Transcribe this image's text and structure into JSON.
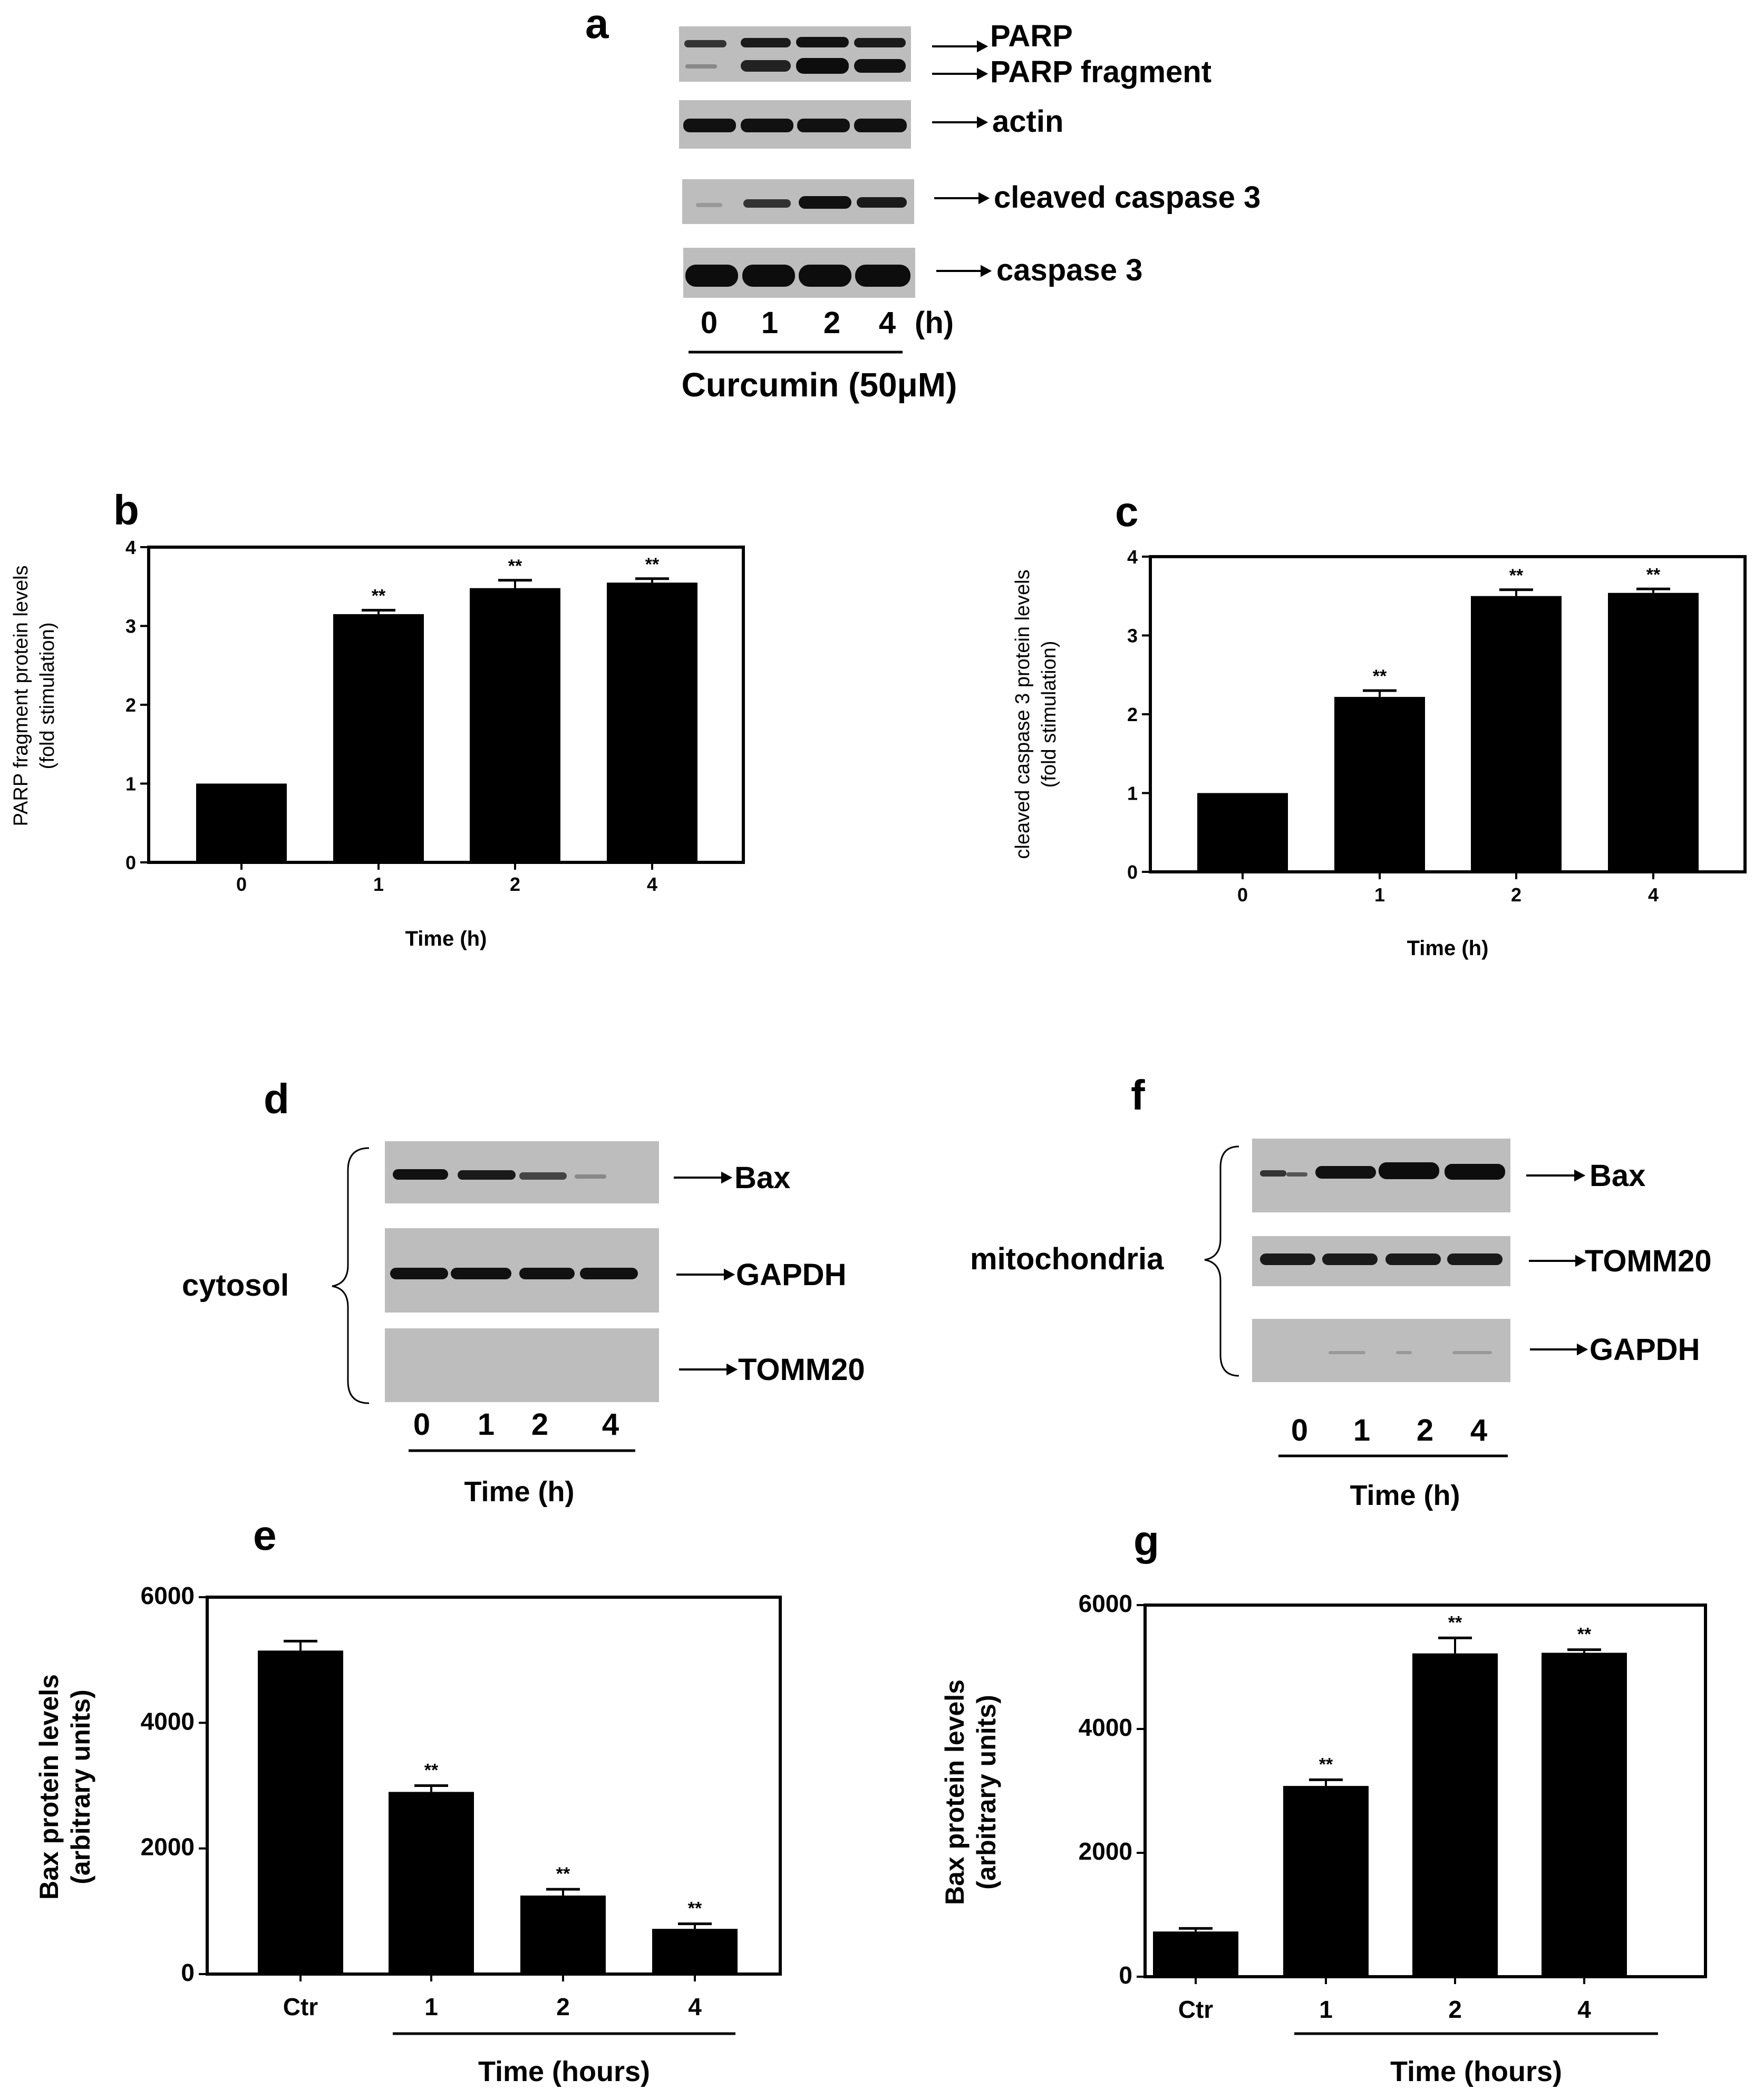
{
  "panels": {
    "a": {
      "letter": "a",
      "bands": [
        "PARP",
        "PARP fragment",
        "actin",
        "cleaved caspase 3",
        "caspase 3"
      ],
      "lanes": [
        "0",
        "1",
        "2",
        "4"
      ],
      "unit": "(h)",
      "treatment": "Curcumin (50μM)"
    },
    "d": {
      "letter": "d",
      "compartment": "cytosol",
      "bands": [
        "Bax",
        "GAPDH",
        "TOMM20"
      ],
      "lanes": [
        "0",
        "1",
        "2",
        "4"
      ],
      "axis_label": "Time (h)"
    },
    "f": {
      "letter": "f",
      "compartment": "mitochondria",
      "bands": [
        "Bax",
        "TOMM20",
        "GAPDH"
      ],
      "lanes": [
        "0",
        "1",
        "2",
        "4"
      ],
      "axis_label": "Time (h)"
    }
  },
  "chart_data": [
    {
      "id": "b",
      "letter": "b",
      "type": "bar",
      "categories": [
        "0",
        "1",
        "2",
        "4"
      ],
      "values": [
        1.0,
        3.15,
        3.48,
        3.55
      ],
      "errors": [
        0,
        0.05,
        0.1,
        0.05
      ],
      "significance": [
        "",
        "**",
        "**",
        "**"
      ],
      "ylim": [
        0,
        4
      ],
      "yticks": [
        0,
        1,
        2,
        3,
        4
      ],
      "xlabel": "Time (h)",
      "ylabel": [
        "PARP fragment protein levels",
        "(fold stimulation)"
      ]
    },
    {
      "id": "c",
      "letter": "c",
      "type": "bar",
      "categories": [
        "0",
        "1",
        "2",
        "4"
      ],
      "values": [
        1.0,
        2.22,
        3.5,
        3.54
      ],
      "errors": [
        0,
        0.08,
        0.08,
        0.05
      ],
      "significance": [
        "",
        "**",
        "**",
        "**"
      ],
      "ylim": [
        0,
        4
      ],
      "yticks": [
        0,
        1,
        2,
        3,
        4
      ],
      "xlabel": "Time (h)",
      "ylabel": [
        "cleaved caspase 3 protein levels",
        "(fold stimulation)"
      ]
    },
    {
      "id": "e",
      "letter": "e",
      "type": "bar",
      "categories": [
        "Ctr",
        "1",
        "2",
        "4"
      ],
      "values": [
        5150,
        2900,
        1250,
        720
      ],
      "errors": [
        150,
        100,
        100,
        80
      ],
      "significance": [
        "",
        "**",
        "**",
        "**"
      ],
      "ylim": [
        0,
        6000
      ],
      "yticks": [
        0,
        2000,
        4000,
        6000
      ],
      "xlabel": "Time (hours)",
      "ylabel": [
        "Bax protein levels",
        "(arbitrary units)"
      ]
    },
    {
      "id": "g",
      "letter": "g",
      "type": "bar",
      "categories": [
        "Ctr",
        "1",
        "2",
        "4"
      ],
      "values": [
        730,
        3080,
        5220,
        5230
      ],
      "errors": [
        50,
        100,
        250,
        50
      ],
      "significance": [
        "",
        "**",
        "**",
        "**"
      ],
      "ylim": [
        0,
        6000
      ],
      "yticks": [
        0,
        2000,
        4000,
        6000
      ],
      "xlabel": "Time (hours)",
      "ylabel": [
        "Bax protein levels",
        "(arbitrary units)"
      ]
    }
  ]
}
